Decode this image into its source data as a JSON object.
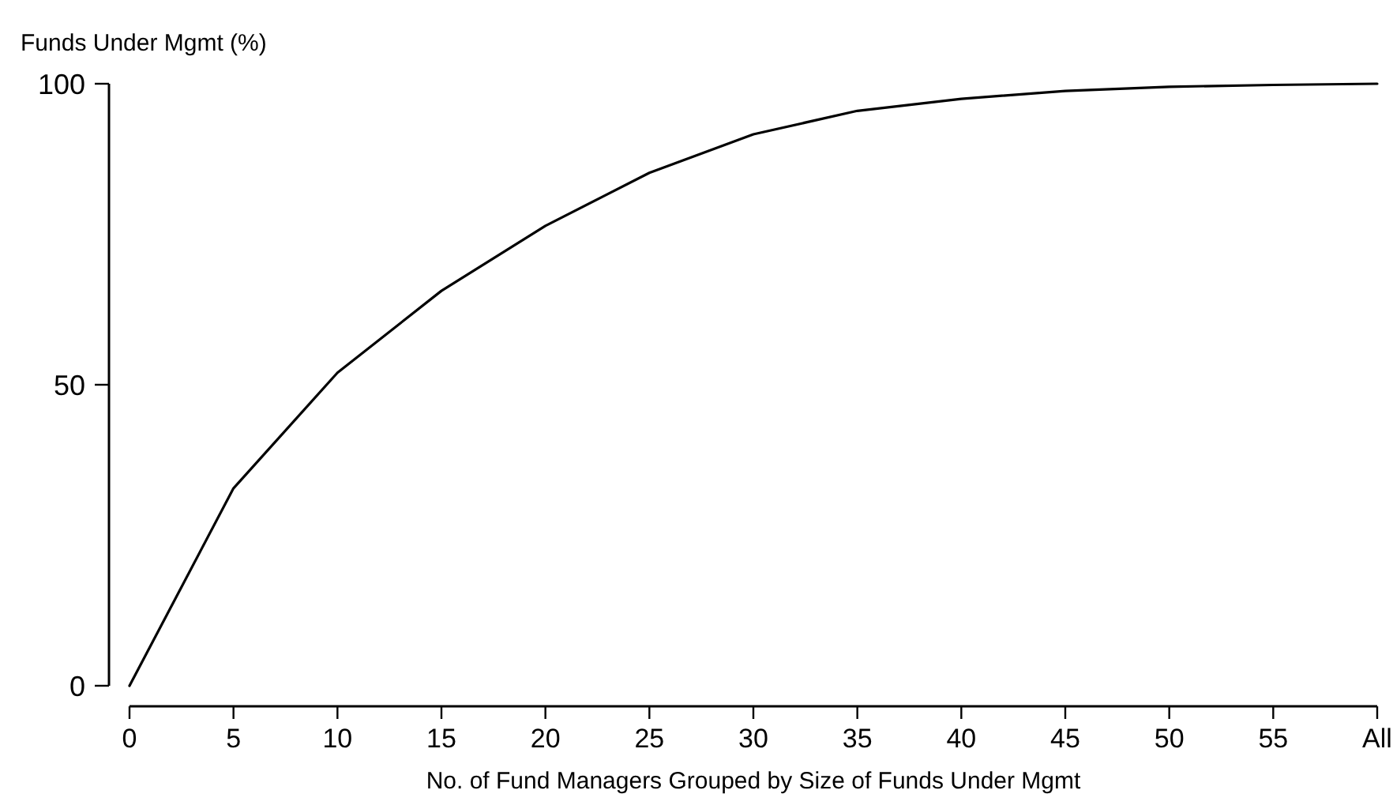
{
  "chart_data": {
    "type": "line",
    "ylabel": "Funds Under Mgmt (%)",
    "xlabel": "No. of Fund Managers Grouped by Size of Funds Under Mgmt",
    "x": [
      0,
      5,
      10,
      15,
      20,
      25,
      30,
      35,
      40,
      45,
      50,
      55,
      60
    ],
    "series": [
      {
        "color": "#000000",
        "values": [
          0,
          32.8,
          52,
          65.6,
          76.4,
          85.2,
          91.6,
          95.5,
          97.5,
          98.8,
          99.5,
          99.8,
          100
        ]
      }
    ],
    "xlim": [
      0,
      60
    ],
    "xticks": [
      0,
      5,
      10,
      15,
      20,
      25,
      30,
      35,
      40,
      45,
      50,
      55,
      {
        "value": 60,
        "label": "All"
      }
    ],
    "ylim": [
      0,
      100
    ],
    "yticks": [
      0,
      50,
      100
    ],
    "grid": false,
    "marker": "none",
    "line_style": "solid"
  }
}
